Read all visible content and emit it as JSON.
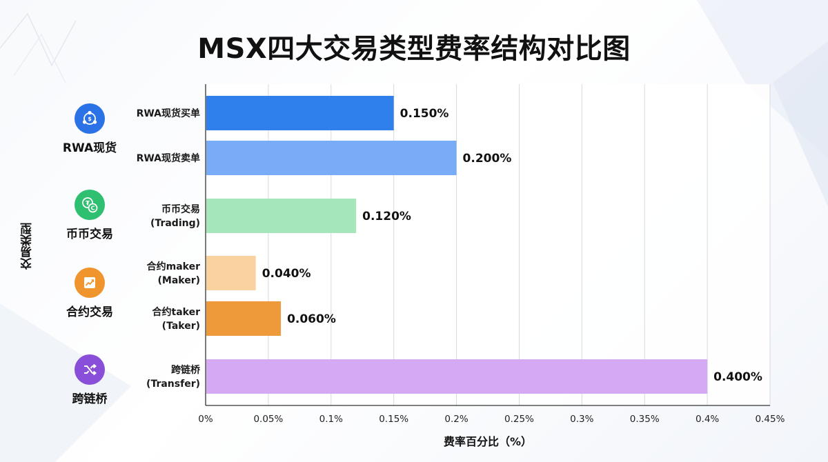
{
  "title": "MSX四大交易类型费率结构对比图",
  "chart_data": {
    "type": "bar",
    "orientation": "horizontal",
    "title": "MSX四大交易类型费率结构对比图",
    "xlabel": "费率百分比（%）",
    "ylabel": "交易类型",
    "xlim": [
      0,
      0.45
    ],
    "xticks": [
      "0%",
      "0.05%",
      "0.1%",
      "0.15%",
      "0.2%",
      "0.25%",
      "0.3%",
      "0.35%",
      "0.4%",
      "0.45%"
    ],
    "grid": true,
    "groups": [
      {
        "label": "RWA现货",
        "icon": "rwa-icon",
        "color": "#2b72e6"
      },
      {
        "label": "币币交易",
        "icon": "coin-exchange-icon",
        "color": "#2fbf71"
      },
      {
        "label": "合约交易",
        "icon": "contract-chart-icon",
        "color": "#f0952d"
      },
      {
        "label": "跨链桥",
        "icon": "shuffle-icon",
        "color": "#8a4fd8"
      }
    ],
    "bars": [
      {
        "label_lines": [
          "RWA现货买单"
        ],
        "group": 0,
        "value": 0.15,
        "value_label": "0.150%",
        "color": "#2f80ed"
      },
      {
        "label_lines": [
          "RWA现货卖单"
        ],
        "group": 0,
        "value": 0.2,
        "value_label": "0.200%",
        "color": "#79acf7"
      },
      {
        "label_lines": [
          "币币交易",
          "(Trading)"
        ],
        "group": 1,
        "value": 0.12,
        "value_label": "0.120%",
        "color": "#a6e6bb"
      },
      {
        "label_lines": [
          "合约maker",
          "(Maker)"
        ],
        "group": 2,
        "value": 0.04,
        "value_label": "0.040%",
        "color": "#fad2a0"
      },
      {
        "label_lines": [
          "合约taker",
          "(Taker)"
        ],
        "group": 2,
        "value": 0.06,
        "value_label": "0.060%",
        "color": "#ef9a3a"
      },
      {
        "label_lines": [
          "跨链桥",
          "(Transfer)"
        ],
        "group": 3,
        "value": 0.4,
        "value_label": "0.400%",
        "color": "#d6a9f5"
      }
    ]
  }
}
